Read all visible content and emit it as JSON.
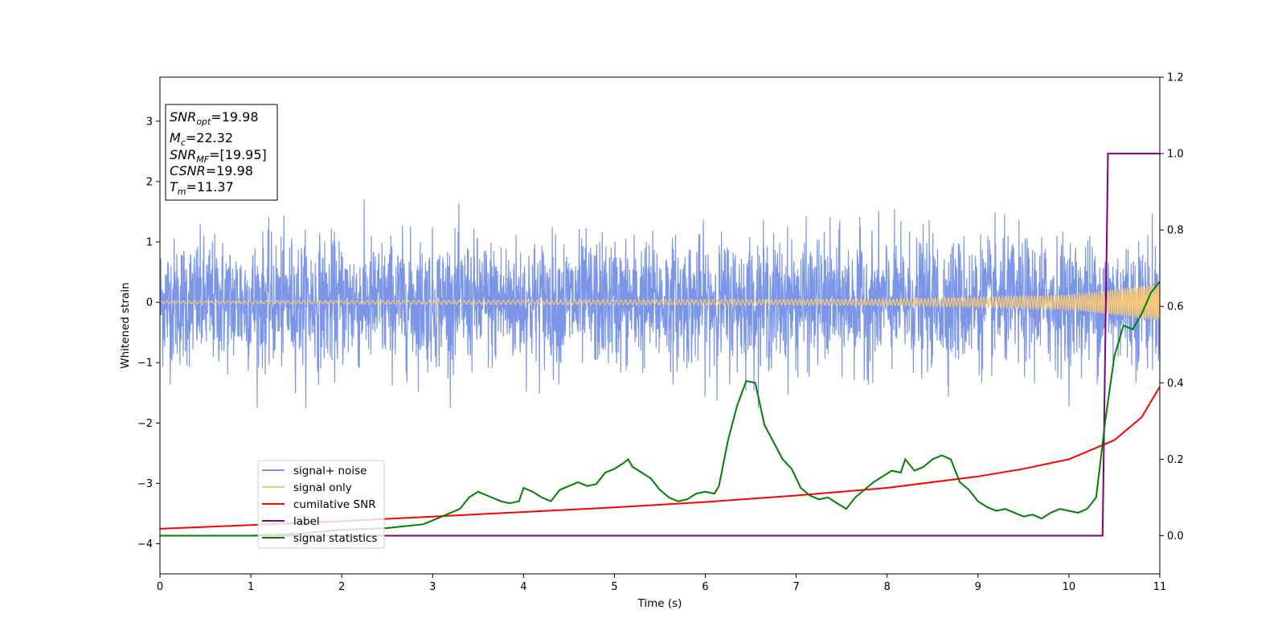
{
  "chart_data": {
    "type": "line",
    "title": "",
    "xlabel": "Time (s)",
    "ylabel": "Whitened strain",
    "y2label": "",
    "xlim": [
      0,
      11
    ],
    "ylim": [
      -4.5,
      3.73
    ],
    "y2lim": [
      -0.1,
      1.2
    ],
    "xticks": [
      "0",
      "1",
      "2",
      "3",
      "4",
      "5",
      "6",
      "7",
      "8",
      "9",
      "10",
      "11"
    ],
    "yticks": [
      "3",
      "2",
      "1",
      "0",
      "−1",
      "−2",
      "−3",
      "−4"
    ],
    "y2ticks": [
      "1.2",
      "1.0",
      "0.8",
      "0.6",
      "0.4",
      "0.2",
      "0.0"
    ],
    "grid": false,
    "legend_placement": "lower-left",
    "info_box": {
      "snr_opt": {
        "base": "SNR",
        "sub": "opt",
        "value": "=19.98"
      },
      "mc": {
        "base": "M",
        "sub": "c",
        "value": "=22.32"
      },
      "snr_mf": {
        "base": "SNR",
        "sub": "MF",
        "value": "=[19.95]"
      },
      "csnr": {
        "base": "CSNR",
        "sub": "",
        "value": "=19.98"
      },
      "tm": {
        "base": "T",
        "sub": "m",
        "value": "=11.37"
      }
    },
    "series": [
      {
        "name": "signal+ noise",
        "axis": "left",
        "color": "#7b96e9",
        "description_values": {
          "mean": 0.0,
          "typical_amplitude": 1.0,
          "max": 1.8,
          "min": -1.75
        }
      },
      {
        "name": "signal only",
        "axis": "left",
        "color": "#f5c77a",
        "amplitude_envelope": {
          "x": [
            0,
            8,
            10,
            11
          ],
          "y": [
            0.02,
            0.05,
            0.12,
            0.3
          ]
        }
      },
      {
        "name": "cumilative SNR",
        "axis": "right",
        "color": "#ff0000",
        "x": [
          0,
          1,
          2,
          3,
          4,
          5,
          6,
          7,
          8,
          9,
          9.5,
          10,
          10.5,
          10.8,
          11
        ],
        "y": [
          0.018,
          0.028,
          0.038,
          0.05,
          0.062,
          0.074,
          0.088,
          0.105,
          0.125,
          0.155,
          0.175,
          0.2,
          0.25,
          0.31,
          0.39
        ]
      },
      {
        "name": "label",
        "axis": "right",
        "color": "#800080",
        "x": [
          0,
          10.37,
          10.43,
          11
        ],
        "y": [
          0,
          0,
          1,
          1
        ]
      },
      {
        "name": "signal statistics",
        "axis": "right",
        "color": "#008000",
        "x": [
          0,
          1,
          1.5,
          2,
          2.5,
          2.9,
          3.1,
          3.3,
          3.4,
          3.5,
          3.6,
          3.75,
          3.85,
          3.95,
          4.0,
          4.1,
          4.2,
          4.3,
          4.4,
          4.5,
          4.6,
          4.7,
          4.8,
          4.9,
          5.0,
          5.1,
          5.15,
          5.2,
          5.3,
          5.4,
          5.5,
          5.6,
          5.7,
          5.8,
          5.9,
          6.0,
          6.1,
          6.15,
          6.25,
          6.35,
          6.45,
          6.55,
          6.65,
          6.75,
          6.85,
          6.95,
          7.05,
          7.15,
          7.25,
          7.35,
          7.45,
          7.55,
          7.65,
          7.75,
          7.85,
          7.95,
          8.05,
          8.15,
          8.2,
          8.3,
          8.4,
          8.5,
          8.6,
          8.7,
          8.8,
          8.9,
          9.0,
          9.1,
          9.2,
          9.3,
          9.4,
          9.5,
          9.6,
          9.7,
          9.8,
          9.9,
          10.0,
          10.1,
          10.2,
          10.3,
          10.4,
          10.5,
          10.6,
          10.7,
          10.8,
          10.9,
          11.0
        ],
        "y": [
          0.0,
          0.0,
          0.005,
          0.015,
          0.02,
          0.03,
          0.05,
          0.07,
          0.1,
          0.115,
          0.105,
          0.09,
          0.085,
          0.09,
          0.125,
          0.115,
          0.1,
          0.09,
          0.12,
          0.13,
          0.14,
          0.13,
          0.135,
          0.165,
          0.175,
          0.19,
          0.2,
          0.18,
          0.165,
          0.15,
          0.12,
          0.1,
          0.09,
          0.095,
          0.11,
          0.115,
          0.11,
          0.13,
          0.25,
          0.34,
          0.405,
          0.4,
          0.29,
          0.245,
          0.2,
          0.175,
          0.125,
          0.105,
          0.095,
          0.1,
          0.085,
          0.07,
          0.1,
          0.12,
          0.14,
          0.155,
          0.17,
          0.165,
          0.2,
          0.17,
          0.18,
          0.2,
          0.21,
          0.2,
          0.14,
          0.12,
          0.09,
          0.075,
          0.065,
          0.07,
          0.06,
          0.05,
          0.055,
          0.045,
          0.06,
          0.07,
          0.065,
          0.06,
          0.07,
          0.1,
          0.3,
          0.47,
          0.55,
          0.54,
          0.58,
          0.635,
          0.665
        ]
      }
    ]
  }
}
